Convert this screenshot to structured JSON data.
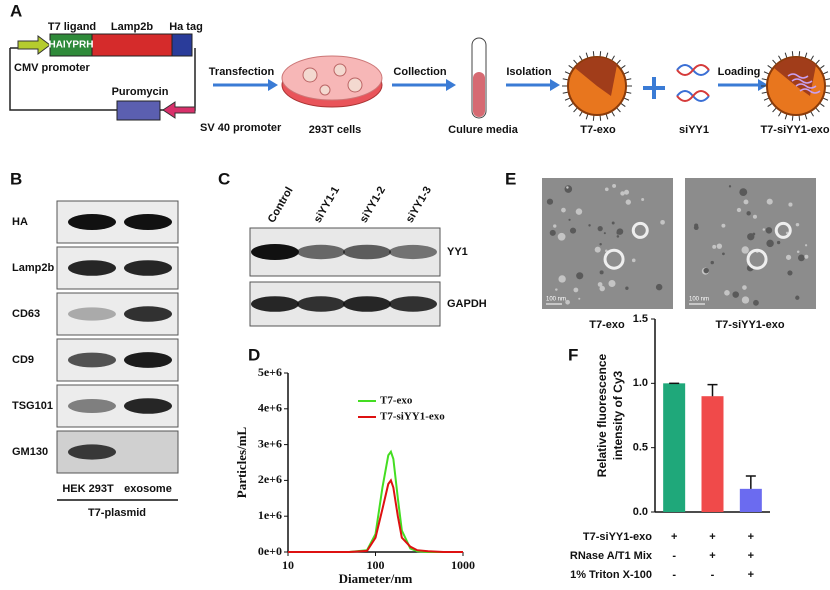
{
  "figure": {
    "panel_labels": [
      "A",
      "B",
      "C",
      "E"
    ],
    "A": {
      "ligand_label": "T7 ligand",
      "ligand_seq": "HAIYPRH",
      "lamp2b": "Lamp2b",
      "ha_tag": "Ha tag",
      "cmv": "CMV promoter",
      "puromycin": "Puromycin",
      "sv40": "SV 40 promoter",
      "steps": [
        "Transfection",
        "Collection",
        "Isolation",
        "Loading"
      ],
      "items": [
        "293T cells",
        "Culure media",
        "T7-exo",
        "siYY1",
        "T7-siYY1-exo"
      ]
    },
    "B": {
      "rows": [
        "HA",
        "Lamp2b",
        "CD63",
        "CD9",
        "TSG101",
        "GM130"
      ],
      "lanes": [
        "HEK 293T",
        "exosome"
      ],
      "group": "T7-plasmid"
    },
    "C": {
      "lanes": [
        "Control",
        "siYY1-1",
        "siYY1-2",
        "siYY1-3"
      ],
      "rows": [
        "YY1",
        "GAPDH"
      ]
    },
    "E": {
      "images": [
        "T7-exo",
        "T7-siYY1-exo"
      ],
      "scale_bar": "100 nm"
    }
  },
  "chart_data": [
    {
      "type": "line",
      "panel_label": "D",
      "xlabel": "Diameter/nm",
      "ylabel": "Particles/mL",
      "log_x": true,
      "x": [
        10,
        50,
        80,
        100,
        120,
        140,
        150,
        160,
        180,
        200,
        250,
        300,
        400,
        600,
        1000
      ],
      "series": [
        {
          "name": "T7-exo",
          "color": "#44dd22",
          "values": [
            0,
            0,
            50000,
            500000,
            1800000,
            2700000,
            2800000,
            2600000,
            1500000,
            600000,
            100000,
            20000,
            0,
            0,
            0
          ]
        },
        {
          "name": "T7-siYY1-exo",
          "color": "#dd1111",
          "values": [
            0,
            0,
            30000,
            400000,
            1200000,
            1900000,
            2000000,
            1800000,
            1000000,
            400000,
            150000,
            50000,
            20000,
            0,
            0
          ]
        }
      ],
      "xlim": [
        10,
        1000
      ],
      "xticks": [
        10,
        100,
        1000
      ],
      "ylim": [
        0,
        5000000
      ],
      "yticks": [
        {
          "value": 0,
          "label": "0e+0"
        },
        {
          "value": 1000000,
          "label": "1e+6"
        },
        {
          "value": 2000000,
          "label": "2e+6"
        },
        {
          "value": 3000000,
          "label": "3e+6"
        },
        {
          "value": 4000000,
          "label": "4e+6"
        },
        {
          "value": 5000000,
          "label": "5e+6"
        }
      ],
      "legend": "upper right"
    },
    {
      "type": "bar",
      "panel_label": "F",
      "ylabel": [
        "Relative fluorescence",
        "intensity of Cy3"
      ],
      "categories": [
        null,
        null,
        null
      ],
      "values": [
        1.0,
        0.9,
        0.18
      ],
      "errors": [
        0,
        0.09,
        0.1
      ],
      "colors": [
        "#1fa87a",
        "#f04a4a",
        "#6b6bf0"
      ],
      "ylim": [
        0,
        1.5
      ],
      "yticks": [
        {
          "value": 0,
          "label": "0.0"
        },
        0.5,
        {
          "value": 1,
          "label": "1.0"
        },
        1.5
      ],
      "conditions": [
        {
          "label": "T7-siYY1-exo",
          "marks": [
            "+",
            "+",
            "+"
          ]
        },
        {
          "label": "RNase A/T1 Mix",
          "marks": [
            "-",
            "+",
            "+"
          ]
        },
        {
          "label": "1% Triton X-100",
          "marks": [
            "-",
            "-",
            "+"
          ]
        }
      ]
    }
  ]
}
